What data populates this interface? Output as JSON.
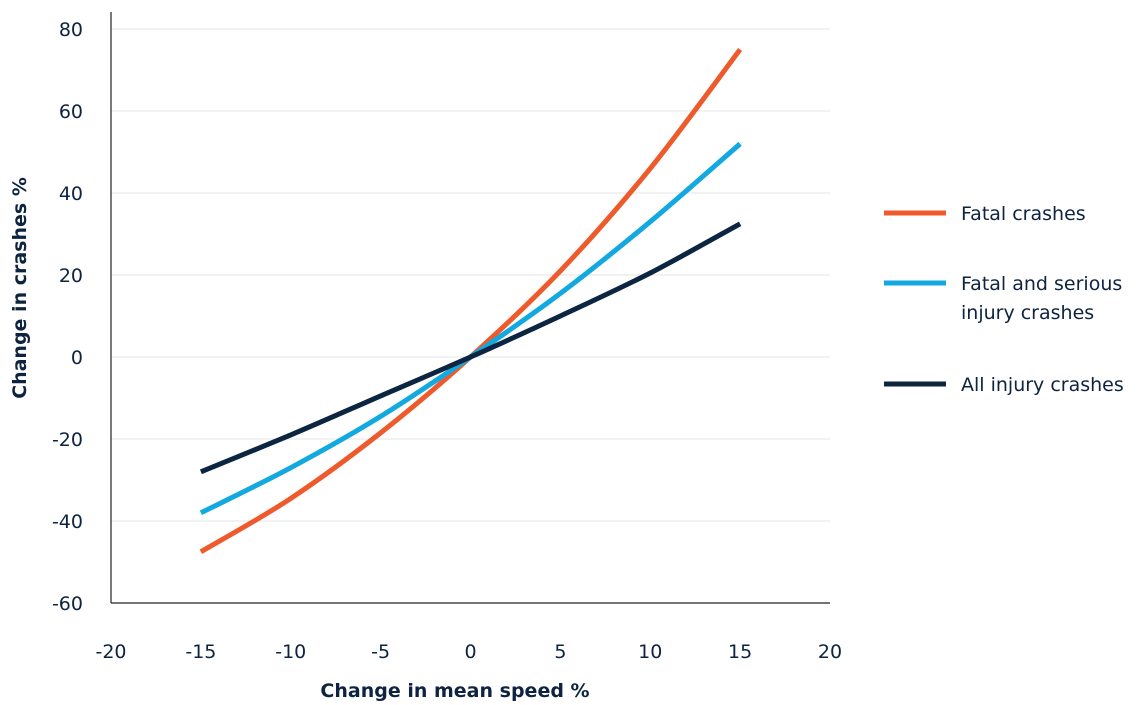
{
  "chart_data": {
    "type": "line",
    "xlabel": "Change in mean speed %",
    "ylabel": "Change in crashes %",
    "xlim": [
      -20,
      20
    ],
    "ylim": [
      -60,
      80
    ],
    "xticks": [
      -20,
      -15,
      -10,
      -5,
      0,
      5,
      10,
      15,
      20
    ],
    "yticks": [
      -60,
      -40,
      -20,
      0,
      20,
      40,
      60,
      80
    ],
    "grid": "horizontal",
    "legend_position": "right",
    "x": [
      -15,
      -10,
      -5,
      0,
      5,
      10,
      15
    ],
    "series": [
      {
        "name": "Fatal crashes",
        "color": "#ee5a2c",
        "values": [
          -47.5,
          -34.5,
          -18.5,
          0,
          21,
          46,
          75
        ]
      },
      {
        "name": "Fatal and serious injury crashes",
        "color": "#12a8e0",
        "values": [
          -38,
          -27,
          -14.5,
          0,
          15.5,
          33,
          52
        ]
      },
      {
        "name": "All injury crashes",
        "color": "#0c2541",
        "values": [
          -28,
          -19,
          -9.5,
          0,
          10,
          20.5,
          32.5
        ]
      }
    ],
    "legend_lines": [
      [
        "Fatal crashes"
      ],
      [
        "Fatal and serious",
        "injury crashes"
      ],
      [
        "All injury crashes"
      ]
    ]
  }
}
